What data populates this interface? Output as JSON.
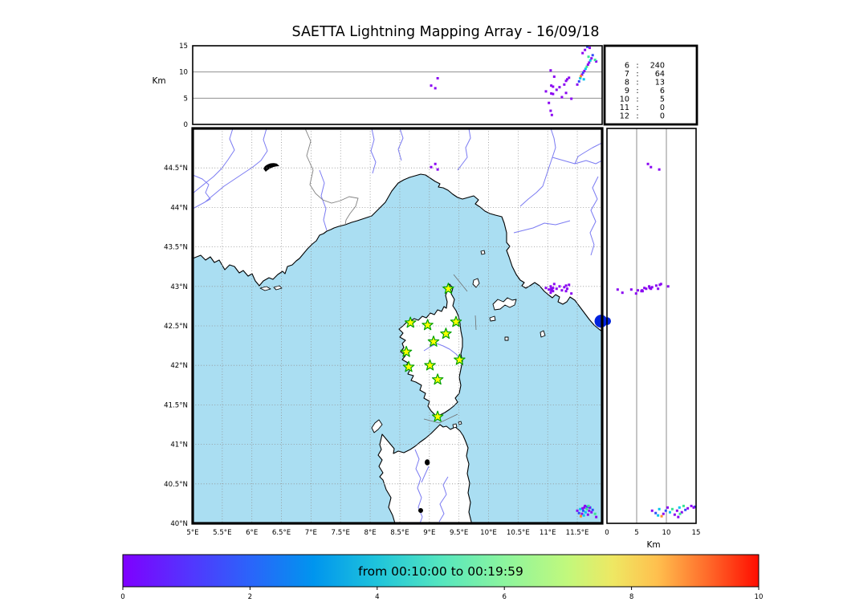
{
  "title": "SAETTA Lightning Mapping Array - 16/09/18",
  "top_panel": {
    "axis_label": "Km",
    "yticks": [
      {
        "v": 0,
        "label": "0"
      },
      {
        "v": 5,
        "label": "5"
      },
      {
        "v": 10,
        "label": "10"
      },
      {
        "v": 15,
        "label": "15"
      }
    ],
    "grid_km": [
      5,
      10
    ],
    "ymax": 15
  },
  "stats_panel": {
    "rows": [
      {
        "level": "6",
        "count": "240",
        "color": "#000000"
      },
      {
        "level": "7",
        "count": "64",
        "color": "#ff0000"
      },
      {
        "level": "8",
        "count": "13",
        "color": "#000000"
      },
      {
        "level": "9",
        "count": "6",
        "color": "#000000"
      },
      {
        "level": "10",
        "count": "5",
        "color": "#000000"
      },
      {
        "level": "11",
        "count": "0",
        "color": "#000000"
      },
      {
        "level": "12",
        "count": "0",
        "color": "#000000"
      }
    ],
    "separator": ":"
  },
  "map_panel": {
    "lat_ticks": [
      {
        "v": 44.5,
        "label": "44.5°N"
      },
      {
        "v": 44,
        "label": "44°N"
      },
      {
        "v": 43.5,
        "label": "43.5°N"
      },
      {
        "v": 43,
        "label": "43°N"
      },
      {
        "v": 42.5,
        "label": "42.5°N"
      },
      {
        "v": 42,
        "label": "42°N"
      },
      {
        "v": 41.5,
        "label": "41.5°N"
      },
      {
        "v": 41,
        "label": "41°N"
      },
      {
        "v": 40.5,
        "label": "40.5°N"
      },
      {
        "v": 40,
        "label": "40°N"
      }
    ],
    "lon_ticks": [
      {
        "v": 5,
        "label": "5°E"
      },
      {
        "v": 5.5,
        "label": "5.5°E"
      },
      {
        "v": 6,
        "label": "6°E"
      },
      {
        "v": 6.5,
        "label": "6.5°E"
      },
      {
        "v": 7,
        "label": "7°E"
      },
      {
        "v": 7.5,
        "label": "7.5°E"
      },
      {
        "v": 8,
        "label": "8°E"
      },
      {
        "v": 8.5,
        "label": "8.5°E"
      },
      {
        "v": 9,
        "label": "9°E"
      },
      {
        "v": 9.5,
        "label": "9.5°E"
      },
      {
        "v": 10,
        "label": "10°E"
      },
      {
        "v": 10.5,
        "label": "10.5°E"
      },
      {
        "v": 11,
        "label": "11°E"
      },
      {
        "v": 11.5,
        "label": "11.5°E"
      }
    ],
    "sea_color": "#aadef2",
    "station_fill": "#ffff00",
    "station_stroke": "#00a000"
  },
  "right_panel": {
    "axis_label": "Km",
    "xticks": [
      {
        "v": 0,
        "label": "0"
      },
      {
        "v": 5,
        "label": "5"
      },
      {
        "v": 10,
        "label": "10"
      },
      {
        "v": 15,
        "label": "15"
      }
    ],
    "grid_km": [
      5,
      10
    ],
    "xmax": 15
  },
  "colorbar": {
    "label": "from 00:10:00 to 00:19:59",
    "vmin": 0,
    "vmax": 10,
    "ticks": [
      {
        "v": 0,
        "label": "0"
      },
      {
        "v": 2,
        "label": "2"
      },
      {
        "v": 4,
        "label": "4"
      },
      {
        "v": 6,
        "label": "6"
      },
      {
        "v": 8,
        "label": "8"
      },
      {
        "v": 10,
        "label": "10"
      }
    ],
    "gradient": [
      [
        "0%",
        "#7f00ff"
      ],
      [
        "10%",
        "#5533fe"
      ],
      [
        "20%",
        "#2b64fa"
      ],
      [
        "30%",
        "#0095ee"
      ],
      [
        "40%",
        "#1fc4db"
      ],
      [
        "50%",
        "#55e6bf"
      ],
      [
        "60%",
        "#8cf59e"
      ],
      [
        "70%",
        "#c2f87c"
      ],
      [
        "77%",
        "#eee863"
      ],
      [
        "84%",
        "#ffc04e"
      ],
      [
        "92%",
        "#ff6a2a"
      ],
      [
        "100%",
        "#ff0d00"
      ]
    ]
  },
  "chart_data": {
    "type": "scatter",
    "title": "SAETTA Lightning Mapping Array - 16/09/18",
    "time_window": "from 00:10:00 to 00:19:59",
    "geo_extent": {
      "lon": [
        5.0,
        11.92
      ],
      "lat": [
        40.0,
        45.0
      ]
    },
    "altitude_extent_km": [
      0,
      15
    ],
    "colorbar_range": [
      0,
      10
    ],
    "palette": [
      "#8a06f2",
      "#2e4ef8",
      "#00c4ec",
      "#38e491",
      "#ff8e2a"
    ],
    "stations_lonlat": [
      [
        9.32,
        42.97
      ],
      [
        8.68,
        42.54
      ],
      [
        8.97,
        42.51
      ],
      [
        9.45,
        42.55
      ],
      [
        9.28,
        42.4
      ],
      [
        9.07,
        42.3
      ],
      [
        8.61,
        42.17
      ],
      [
        9.51,
        42.07
      ],
      [
        9.01,
        42.0
      ],
      [
        8.65,
        41.98
      ],
      [
        9.14,
        41.82
      ],
      [
        9.14,
        41.35
      ]
    ],
    "flashes_lon_lat_altkm_color": [
      [
        9.03,
        44.51,
        7.4,
        0
      ],
      [
        9.14,
        44.48,
        8.8,
        0
      ],
      [
        9.1,
        44.55,
        6.9,
        0
      ],
      [
        11.05,
        43.0,
        10.3,
        0
      ],
      [
        11.06,
        42.97,
        7.4,
        0
      ],
      [
        11.09,
        42.98,
        7.2,
        0
      ],
      [
        11.06,
        42.95,
        5.9,
        0
      ],
      [
        11.09,
        42.94,
        5.8,
        0
      ],
      [
        11.05,
        42.92,
        2.6,
        0
      ],
      [
        11.07,
        42.96,
        1.8,
        0
      ],
      [
        11.28,
        42.99,
        7.6,
        0
      ],
      [
        11.31,
        43.01,
        8.3,
        0
      ],
      [
        11.33,
        42.97,
        8.6,
        0
      ],
      [
        11.36,
        43.02,
        8.9,
        0
      ],
      [
        11.31,
        42.94,
        6.0,
        0
      ],
      [
        11.4,
        42.91,
        4.9,
        0
      ],
      [
        11.15,
        42.97,
        6.6,
        0
      ],
      [
        11.2,
        43.0,
        7.1,
        0
      ],
      [
        11.11,
        43.03,
        9.1,
        0
      ],
      [
        11.24,
        42.95,
        5.2,
        0
      ],
      [
        10.97,
        42.98,
        6.3,
        0
      ],
      [
        11.02,
        42.96,
        4.1,
        0
      ],
      [
        11.5,
        40.16,
        7.6,
        0
      ],
      [
        11.53,
        40.13,
        8.2,
        1
      ],
      [
        11.55,
        40.18,
        8.8,
        2
      ],
      [
        11.58,
        40.12,
        9.5,
        0
      ],
      [
        11.6,
        40.16,
        9.9,
        1
      ],
      [
        11.62,
        40.2,
        10.2,
        0
      ],
      [
        11.64,
        40.14,
        10.6,
        2
      ],
      [
        11.66,
        40.18,
        11.0,
        3
      ],
      [
        11.68,
        40.11,
        11.4,
        0
      ],
      [
        11.7,
        40.16,
        11.8,
        0
      ],
      [
        11.72,
        40.2,
        12.2,
        2
      ],
      [
        11.74,
        40.14,
        12.6,
        0
      ],
      [
        11.76,
        40.17,
        13.2,
        1
      ],
      [
        11.56,
        40.09,
        9.2,
        4
      ],
      [
        11.63,
        40.22,
        14.2,
        0
      ],
      [
        11.67,
        40.21,
        14.8,
        1
      ],
      [
        11.71,
        40.2,
        14.6,
        0
      ],
      [
        11.59,
        40.19,
        13.6,
        0
      ],
      [
        11.61,
        40.1,
        8.6,
        2
      ],
      [
        11.69,
        40.22,
        12.9,
        3
      ],
      [
        11.82,
        40.08,
        12.0,
        0
      ],
      [
        11.8,
        40.12,
        12.3,
        3
      ]
    ],
    "large_flash": {
      "lon": 11.9,
      "lat": 42.56,
      "alt_km": 0,
      "color": "#0022dd",
      "radius_px": 8
    },
    "stats_histogram": {
      "description": "number of sources per contributing-station count",
      "bins": [
        6,
        7,
        8,
        9,
        10,
        11,
        12
      ],
      "counts": [
        240,
        64,
        13,
        6,
        5,
        0,
        0
      ],
      "highlighted_bin": 7
    }
  }
}
